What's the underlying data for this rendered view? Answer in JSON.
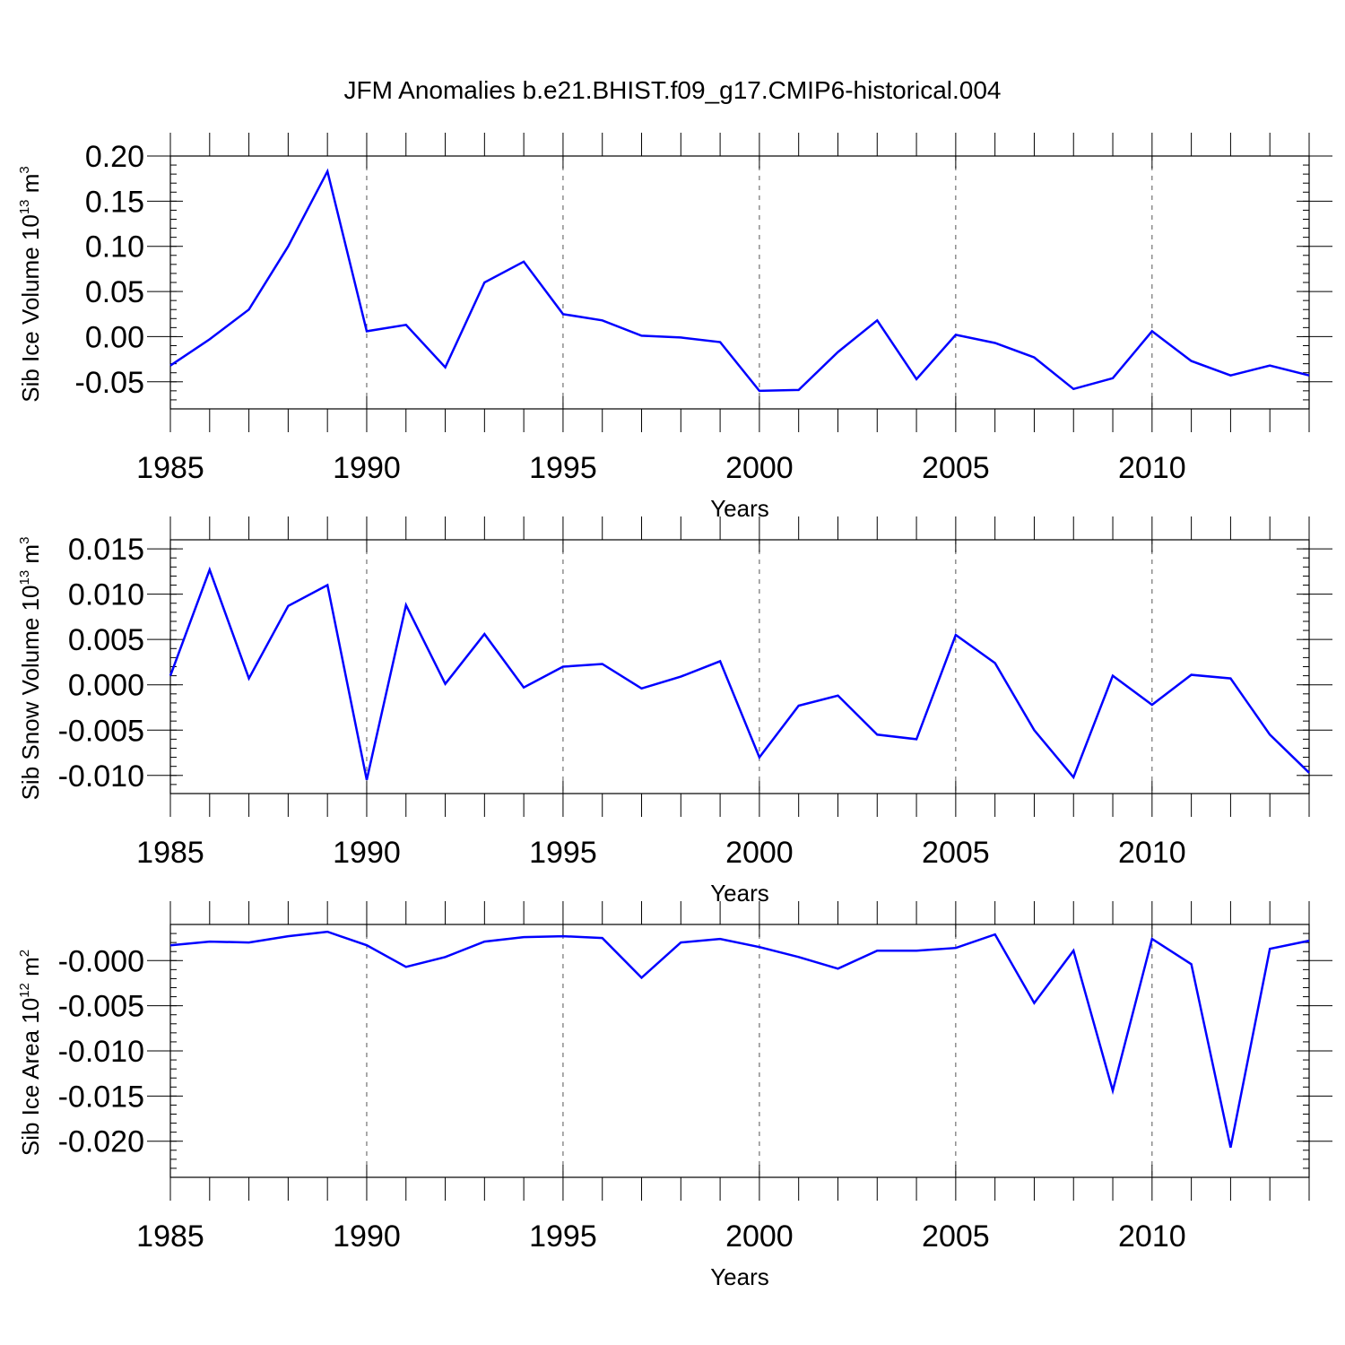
{
  "title": "JFM Anomalies b.e21.BHIST.f09_g17.CMIP6-historical.004",
  "line_color": "#0000ff",
  "chart_data": [
    {
      "type": "line",
      "ylabel_main": "Sib Ice Volume 10",
      "ylabel_exp": "13",
      "ylabel_unit": " m",
      "ylabel_unit_exp": "3",
      "xlabel": "Years",
      "xlim": [
        1985,
        2014
      ],
      "ylim": [
        -0.08,
        0.2
      ],
      "xticks": [
        1985,
        1990,
        1995,
        2000,
        2005,
        2010
      ],
      "xtick_labels": [
        "1985",
        "1990",
        "1995",
        "2000",
        "2005",
        "2010"
      ],
      "yticks": [
        0.2,
        0.15,
        0.1,
        0.05,
        0.0,
        -0.05
      ],
      "ytick_labels": [
        "0.20",
        "0.15",
        "0.10",
        "0.05",
        "0.00",
        "-0.05"
      ],
      "yminor": 0.01,
      "x": [
        1985,
        1986,
        1987,
        1988,
        1989,
        1990,
        1991,
        1992,
        1993,
        1994,
        1995,
        1996,
        1997,
        1998,
        1999,
        2000,
        2001,
        2002,
        2003,
        2004,
        2005,
        2006,
        2007,
        2008,
        2009,
        2010,
        2011,
        2012,
        2013,
        2014
      ],
      "values": [
        -0.032,
        -0.003,
        0.03,
        0.1,
        0.183,
        0.006,
        0.013,
        -0.034,
        0.06,
        0.083,
        0.025,
        0.018,
        0.001,
        -0.001,
        -0.006,
        -0.06,
        -0.059,
        -0.017,
        0.018,
        -0.047,
        0.002,
        -0.007,
        -0.023,
        -0.058,
        -0.046,
        0.006,
        -0.027,
        -0.043,
        -0.032,
        -0.043
      ]
    },
    {
      "type": "line",
      "ylabel_main": "Sib Snow Volume 10",
      "ylabel_exp": "13",
      "ylabel_unit": " m",
      "ylabel_unit_exp": "3",
      "xlabel": "Years",
      "xlim": [
        1985,
        2014
      ],
      "ylim": [
        -0.012,
        0.016
      ],
      "xticks": [
        1985,
        1990,
        1995,
        2000,
        2005,
        2010
      ],
      "xtick_labels": [
        "1985",
        "1990",
        "1995",
        "2000",
        "2005",
        "2010"
      ],
      "yticks": [
        0.015,
        0.01,
        0.005,
        0.0,
        -0.005,
        -0.01
      ],
      "ytick_labels": [
        "0.015",
        "0.010",
        "0.005",
        "0.000",
        "-0.005",
        "-0.010"
      ],
      "yminor": 0.001,
      "x": [
        1985,
        1986,
        1987,
        1988,
        1989,
        1990,
        1991,
        1992,
        1993,
        1994,
        1995,
        1996,
        1997,
        1998,
        1999,
        2000,
        2001,
        2002,
        2003,
        2004,
        2005,
        2006,
        2007,
        2008,
        2009,
        2010,
        2011,
        2012,
        2013,
        2014
      ],
      "values": [
        0.001,
        0.0127,
        0.0007,
        0.0087,
        0.011,
        -0.0105,
        0.0088,
        0.0001,
        0.0056,
        -0.0003,
        0.002,
        0.0023,
        -0.0004,
        0.0009,
        0.0026,
        -0.008,
        -0.0023,
        -0.0012,
        -0.0055,
        -0.006,
        0.0055,
        0.0024,
        -0.005,
        -0.0102,
        0.001,
        -0.0022,
        0.0011,
        0.0007,
        -0.0055,
        -0.0097
      ]
    },
    {
      "type": "line",
      "ylabel_main": "Sib Ice Area 10",
      "ylabel_exp": "12",
      "ylabel_unit": " m",
      "ylabel_unit_exp": "2",
      "xlabel": "Years",
      "xlim": [
        1985,
        2014
      ],
      "ylim": [
        -0.024,
        0.004
      ],
      "xticks": [
        1985,
        1990,
        1995,
        2000,
        2005,
        2010
      ],
      "xtick_labels": [
        "1985",
        "1990",
        "1995",
        "2000",
        "2005",
        "2010"
      ],
      "yticks": [
        0.0,
        -0.005,
        -0.01,
        -0.015,
        -0.02
      ],
      "ytick_labels": [
        "-0.000",
        "-0.005",
        "-0.010",
        "-0.015",
        "-0.020"
      ],
      "yminor": 0.001,
      "x": [
        1985,
        1986,
        1987,
        1988,
        1989,
        1990,
        1991,
        1992,
        1993,
        1994,
        1995,
        1996,
        1997,
        1998,
        1999,
        2000,
        2001,
        2002,
        2003,
        2004,
        2005,
        2006,
        2007,
        2008,
        2009,
        2010,
        2011,
        2012,
        2013,
        2014
      ],
      "values": [
        0.0017,
        0.0021,
        0.002,
        0.0027,
        0.0032,
        0.0017,
        -0.0007,
        0.0004,
        0.0021,
        0.0026,
        0.0027,
        0.0025,
        -0.0019,
        0.002,
        0.0024,
        0.0015,
        0.0004,
        -0.0009,
        0.0011,
        0.0011,
        0.0014,
        0.0029,
        -0.0047,
        0.0011,
        -0.0144,
        0.0024,
        -0.0004,
        -0.0207,
        0.0013,
        0.0022
      ]
    }
  ]
}
